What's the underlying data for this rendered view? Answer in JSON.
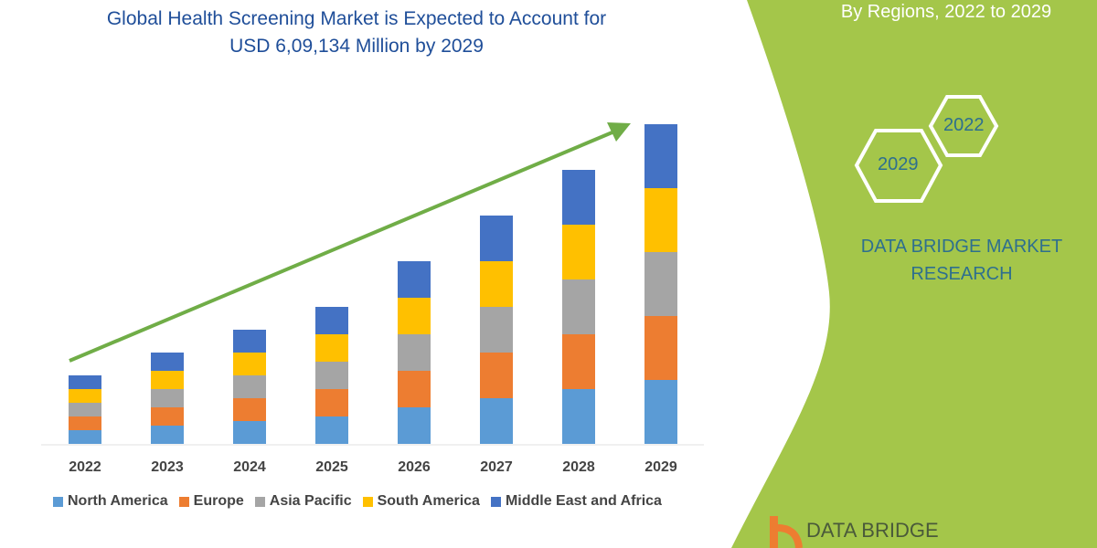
{
  "chart_data": {
    "type": "bar",
    "stacked": true,
    "title": "Global Health Screening Market is Expected to Account for USD 6,09,134 Million by 2029",
    "categories": [
      "2022",
      "2023",
      "2024",
      "2025",
      "2026",
      "2027",
      "2028",
      "2029"
    ],
    "series": [
      {
        "name": "North America",
        "color": "#5b9bd5",
        "values": [
          15,
          20,
          25,
          30,
          40,
          50,
          60,
          70
        ]
      },
      {
        "name": "Europe",
        "color": "#ed7d31",
        "values": [
          15,
          20,
          25,
          30,
          40,
          50,
          60,
          70
        ]
      },
      {
        "name": "Asia Pacific",
        "color": "#a5a5a5",
        "values": [
          15,
          20,
          25,
          30,
          40,
          50,
          60,
          70
        ]
      },
      {
        "name": "South America",
        "color": "#ffc000",
        "values": [
          15,
          20,
          25,
          30,
          40,
          50,
          60,
          70
        ]
      },
      {
        "name": "Middle East and Africa",
        "color": "#4472c4",
        "values": [
          15,
          20,
          25,
          30,
          40,
          50,
          60,
          70
        ]
      }
    ],
    "xlabel": "",
    "ylabel": "",
    "y_axis_shown": false,
    "grid": false,
    "legend_position": "bottom",
    "trend_arrow_color": "#70ad47"
  },
  "title_line1": "Global Health Screening Market is Expected to Account for",
  "title_line2": "USD 6,09,134 Million by 2029",
  "side_panel": {
    "subtitle": "By Regions, 2022 to 2029",
    "hex_years": [
      "2022",
      "2029"
    ],
    "brand_line1": "DATA BRIDGE MARKET",
    "brand_line2": "RESEARCH",
    "logo_text": "DATA BRIDGE",
    "panel_color": "#a4c64a"
  }
}
